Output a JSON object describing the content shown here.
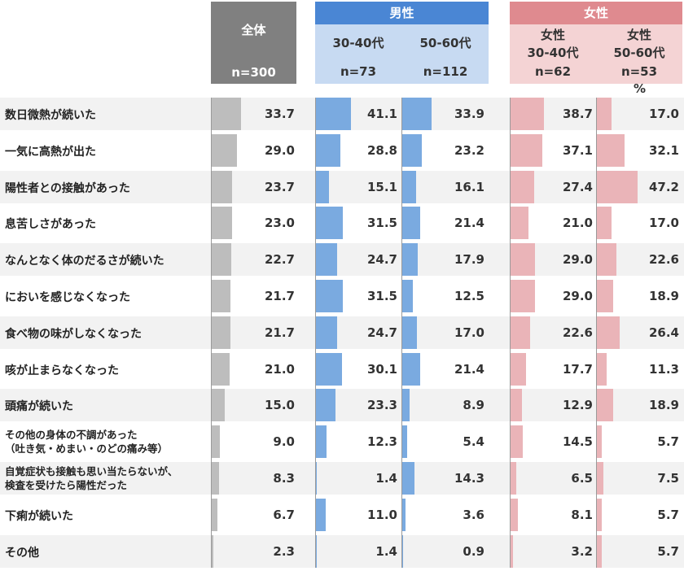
{
  "header": {
    "total_label": "全体",
    "total_n": "n=300",
    "male_label": "男性",
    "female_label": "女性",
    "m1_age": "30-40代",
    "m1_n": "n=73",
    "m2_age": "50-60代",
    "m2_n": "n=112",
    "f1_group": "女性",
    "f1_age": "30-40代",
    "f1_n": "n=62",
    "f2_group": "女性",
    "f2_age": "50-60代",
    "f2_n": "n=53",
    "unit": "%"
  },
  "colors": {
    "total_header": "#808080",
    "male_header": "#4a86d4",
    "male_sub": "#c7daf2",
    "female_header": "#df8a8f",
    "female_sub": "#f4d3d4",
    "total_bar": "#bdbdbd",
    "male_bar": "#7aaae0",
    "female_bar": "#eab4b8",
    "row_stripe": "#f2f2f2"
  },
  "chart_data": {
    "type": "table",
    "columns": [
      "全体",
      "男性 30-40代",
      "男性 50-60代",
      "女性 30-40代",
      "女性 50-60代"
    ],
    "categories": [
      [
        "数日微熱が続いた"
      ],
      [
        "一気に高熱が出た"
      ],
      [
        "陽性者との接触があった"
      ],
      [
        "息苦しさがあった"
      ],
      [
        "なんとなく体のだるさが続いた"
      ],
      [
        "においを感じなくなった"
      ],
      [
        "食べ物の味がしなくなった"
      ],
      [
        "咳が止まらなくなった"
      ],
      [
        "頭痛が続いた"
      ],
      [
        "その他の身体の不調があった",
        "（吐き気・めまい・のどの痛み等）"
      ],
      [
        "自覚症状も接触も思い当たらないが、",
        "検査を受けたら陽性だった"
      ],
      [
        "下痢が続いた"
      ],
      [
        "その他"
      ]
    ],
    "series": [
      {
        "name": "全体",
        "values": [
          33.7,
          29.0,
          23.7,
          23.0,
          22.7,
          21.7,
          21.7,
          21.0,
          15.0,
          9.0,
          8.3,
          6.7,
          2.3
        ]
      },
      {
        "name": "男性 30-40代",
        "values": [
          41.1,
          28.8,
          15.1,
          31.5,
          24.7,
          31.5,
          24.7,
          30.1,
          23.3,
          12.3,
          1.4,
          11.0,
          1.4
        ]
      },
      {
        "name": "男性 50-60代",
        "values": [
          33.9,
          23.2,
          16.1,
          21.4,
          17.9,
          12.5,
          17.0,
          21.4,
          8.9,
          5.4,
          14.3,
          3.6,
          0.9
        ]
      },
      {
        "name": "女性 30-40代",
        "values": [
          38.7,
          37.1,
          27.4,
          21.0,
          29.0,
          29.0,
          22.6,
          17.7,
          12.9,
          14.5,
          6.5,
          8.1,
          3.2
        ]
      },
      {
        "name": "女性 50-60代",
        "values": [
          17.0,
          32.1,
          47.2,
          17.0,
          22.6,
          18.9,
          26.4,
          11.3,
          18.9,
          5.7,
          7.5,
          5.7,
          5.7
        ]
      }
    ],
    "unit": "%"
  }
}
